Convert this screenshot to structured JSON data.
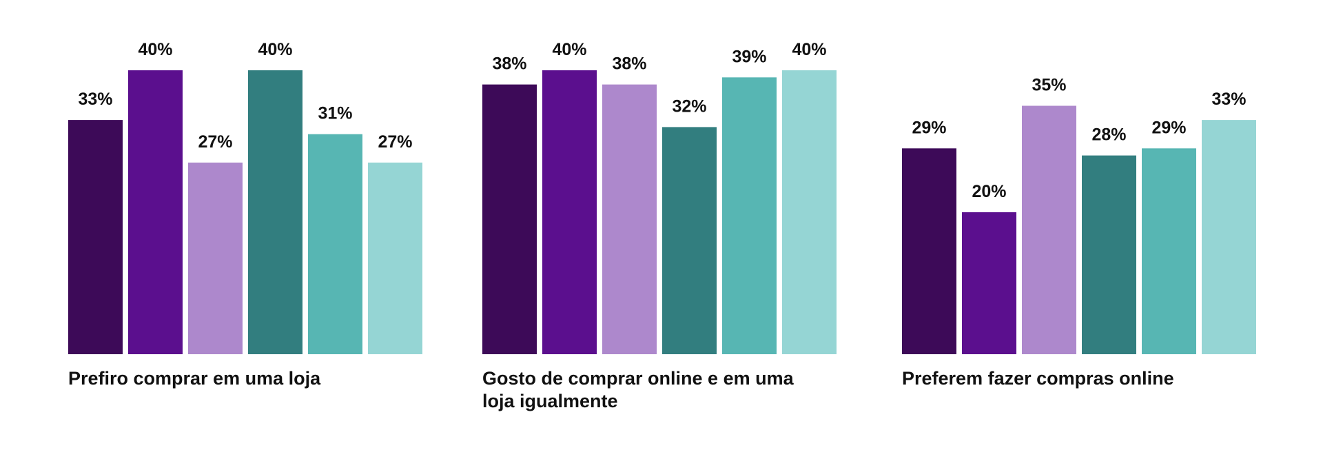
{
  "chart_data": {
    "type": "bar",
    "title": "",
    "xlabel": "",
    "ylabel": "",
    "ylim": [
      0,
      40
    ],
    "grid": false,
    "legend": "none",
    "value_suffix": "%",
    "categories": [
      "Prefiro comprar em uma loja",
      "Gosto de comprar online e em uma loja igualmente",
      "Preferem fazer compras online"
    ],
    "category_lines": [
      [
        "Prefiro comprar em uma loja"
      ],
      [
        "Gosto de comprar online e em uma",
        "loja igualmente"
      ],
      [
        "Preferem fazer compras online"
      ]
    ],
    "series": [
      {
        "color": "#3d0a58",
        "values": [
          33,
          38,
          29
        ]
      },
      {
        "color": "#5b0f8e",
        "values": [
          40,
          40,
          20
        ]
      },
      {
        "color": "#ad88cc",
        "values": [
          27,
          38,
          35
        ]
      },
      {
        "color": "#327e7f",
        "values": [
          40,
          32,
          28
        ]
      },
      {
        "color": "#57b6b3",
        "values": [
          31,
          39,
          29
        ]
      },
      {
        "color": "#95d5d4",
        "values": [
          27,
          40,
          33
        ]
      }
    ]
  }
}
